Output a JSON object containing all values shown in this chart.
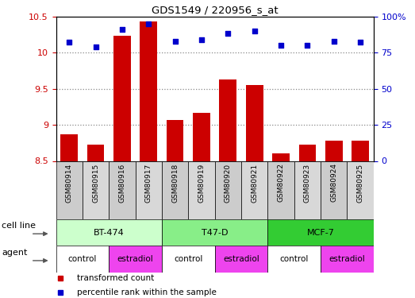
{
  "title": "GDS1549 / 220956_s_at",
  "samples": [
    "GSM80914",
    "GSM80915",
    "GSM80916",
    "GSM80917",
    "GSM80918",
    "GSM80919",
    "GSM80920",
    "GSM80921",
    "GSM80922",
    "GSM80923",
    "GSM80924",
    "GSM80925"
  ],
  "bar_values": [
    8.87,
    8.72,
    10.23,
    10.43,
    9.07,
    9.17,
    9.63,
    9.55,
    8.6,
    8.72,
    8.78,
    8.78
  ],
  "scatter_values": [
    82,
    79,
    91,
    95,
    83,
    84,
    88,
    90,
    80,
    80,
    83,
    82
  ],
  "bar_color": "#cc0000",
  "scatter_color": "#0000cc",
  "ylim_left": [
    8.5,
    10.5
  ],
  "ylim_right": [
    0,
    100
  ],
  "yticks_left": [
    8.5,
    9.0,
    9.5,
    10.0,
    10.5
  ],
  "yticks_right": [
    0,
    25,
    50,
    75,
    100
  ],
  "cell_line_groups": [
    {
      "label": "BT-474",
      "start": 0,
      "end": 3,
      "color": "#ccffcc"
    },
    {
      "label": "T47-D",
      "start": 4,
      "end": 7,
      "color": "#88ee88"
    },
    {
      "label": "MCF-7",
      "start": 8,
      "end": 11,
      "color": "#33cc33"
    }
  ],
  "agent_groups": [
    {
      "label": "control",
      "start": 0,
      "end": 1,
      "color": "#ffffff"
    },
    {
      "label": "estradiol",
      "start": 2,
      "end": 3,
      "color": "#ee44ee"
    },
    {
      "label": "control",
      "start": 4,
      "end": 5,
      "color": "#ffffff"
    },
    {
      "label": "estradiol",
      "start": 6,
      "end": 7,
      "color": "#ee44ee"
    },
    {
      "label": "control",
      "start": 8,
      "end": 9,
      "color": "#ffffff"
    },
    {
      "label": "estradiol",
      "start": 10,
      "end": 11,
      "color": "#ee44ee"
    }
  ],
  "legend_items": [
    {
      "label": "transformed count",
      "color": "#cc0000"
    },
    {
      "label": "percentile rank within the sample",
      "color": "#0000cc"
    }
  ],
  "cell_line_label": "cell line",
  "agent_label": "agent",
  "bar_bottom": 8.5,
  "chart_bg": "#ffffff",
  "grid_dotted_color": "#888888"
}
